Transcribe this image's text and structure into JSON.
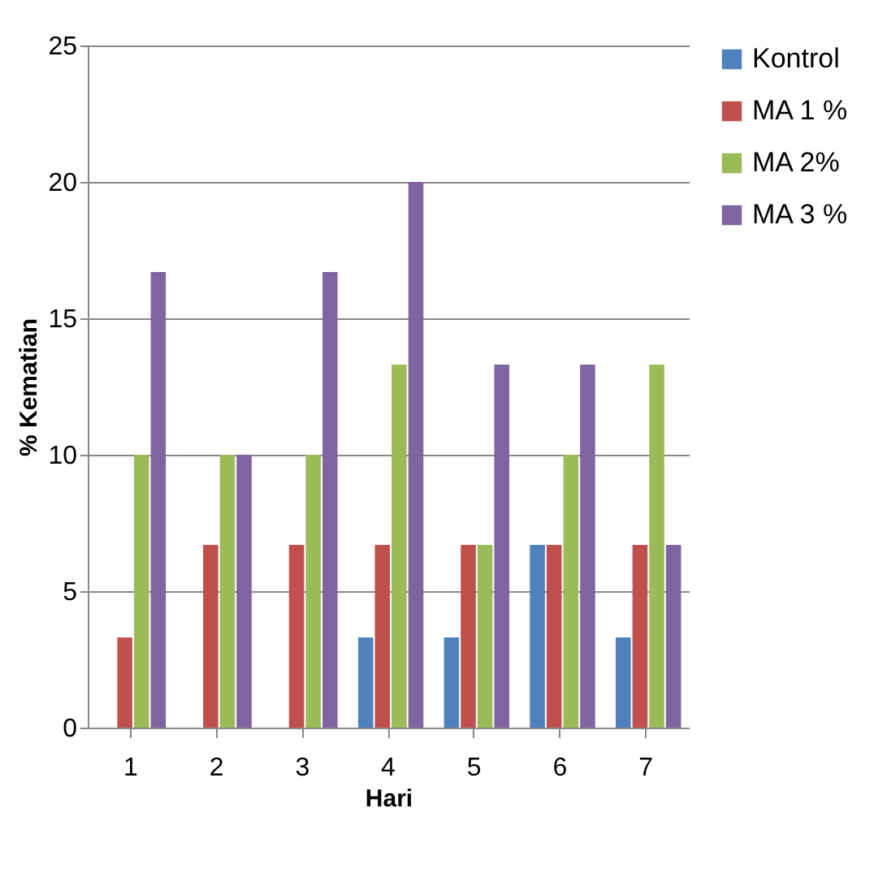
{
  "chart_data": {
    "type": "bar",
    "xlabel": "Hari",
    "ylabel": "% Kematian",
    "categories": [
      "1",
      "2",
      "3",
      "4",
      "5",
      "6",
      "7"
    ],
    "series": [
      {
        "name": "Kontrol",
        "color": "#4f81bd",
        "values": [
          0,
          0,
          0,
          3.3,
          3.3,
          6.7,
          3.3
        ]
      },
      {
        "name": "MA 1 %",
        "color": "#c0504d",
        "values": [
          3.3,
          6.7,
          6.7,
          6.7,
          6.7,
          6.7,
          6.7
        ]
      },
      {
        "name": "MA 2%",
        "color": "#9bbb59",
        "values": [
          10,
          10,
          10,
          13.3,
          6.7,
          10,
          13.3
        ]
      },
      {
        "name": "MA 3 %",
        "color": "#8064a2",
        "values": [
          16.7,
          10,
          16.7,
          20,
          13.3,
          13.3,
          6.7
        ]
      }
    ],
    "ylim": [
      0,
      25
    ],
    "yticks": [
      0,
      5,
      10,
      15,
      20,
      25
    ],
    "grid": "y",
    "legend": "right"
  }
}
